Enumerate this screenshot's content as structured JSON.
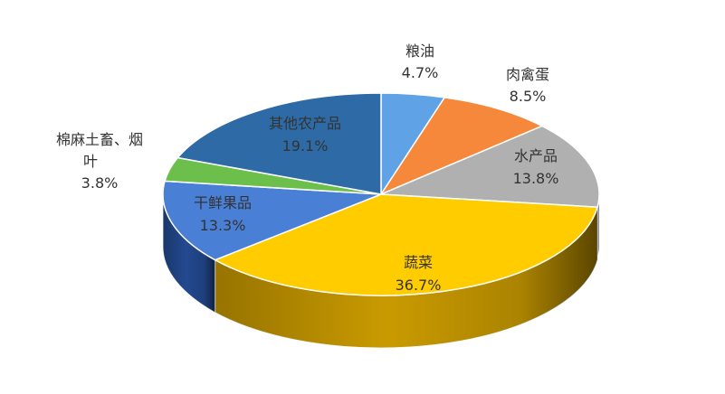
{
  "chart_data": {
    "type": "pie",
    "style": "3d",
    "slices": [
      {
        "label": "粮油",
        "value": 4.7,
        "display": "4.7%",
        "color": "#5fa3e6",
        "side_color": "#3f7fc0"
      },
      {
        "label": "肉禽蛋",
        "value": 8.5,
        "display": "8.5%",
        "color": "#f5883a",
        "side_color": "#b85e1e"
      },
      {
        "label": "水产品",
        "value": 13.8,
        "display": "13.8%",
        "color": "#b0b0b0",
        "side_color": "#6e6e6e"
      },
      {
        "label": "蔬菜",
        "value": 36.7,
        "display": "36.7%",
        "color": "#ffcc00",
        "side_color": "#c99a00"
      },
      {
        "label": "干鲜果品",
        "value": 13.3,
        "display": "13.3%",
        "color": "#4a7fd6",
        "side_color": "#23498f"
      },
      {
        "label": "棉麻土畜、烟叶",
        "value": 3.8,
        "display": "3.8%",
        "color": "#6cbf4a",
        "side_color": "#3f7f26"
      },
      {
        "label": "其他农产品",
        "value": 19.1,
        "display": "19.1%",
        "color": "#2d6aa6",
        "side_color": "#1c4677"
      }
    ]
  }
}
